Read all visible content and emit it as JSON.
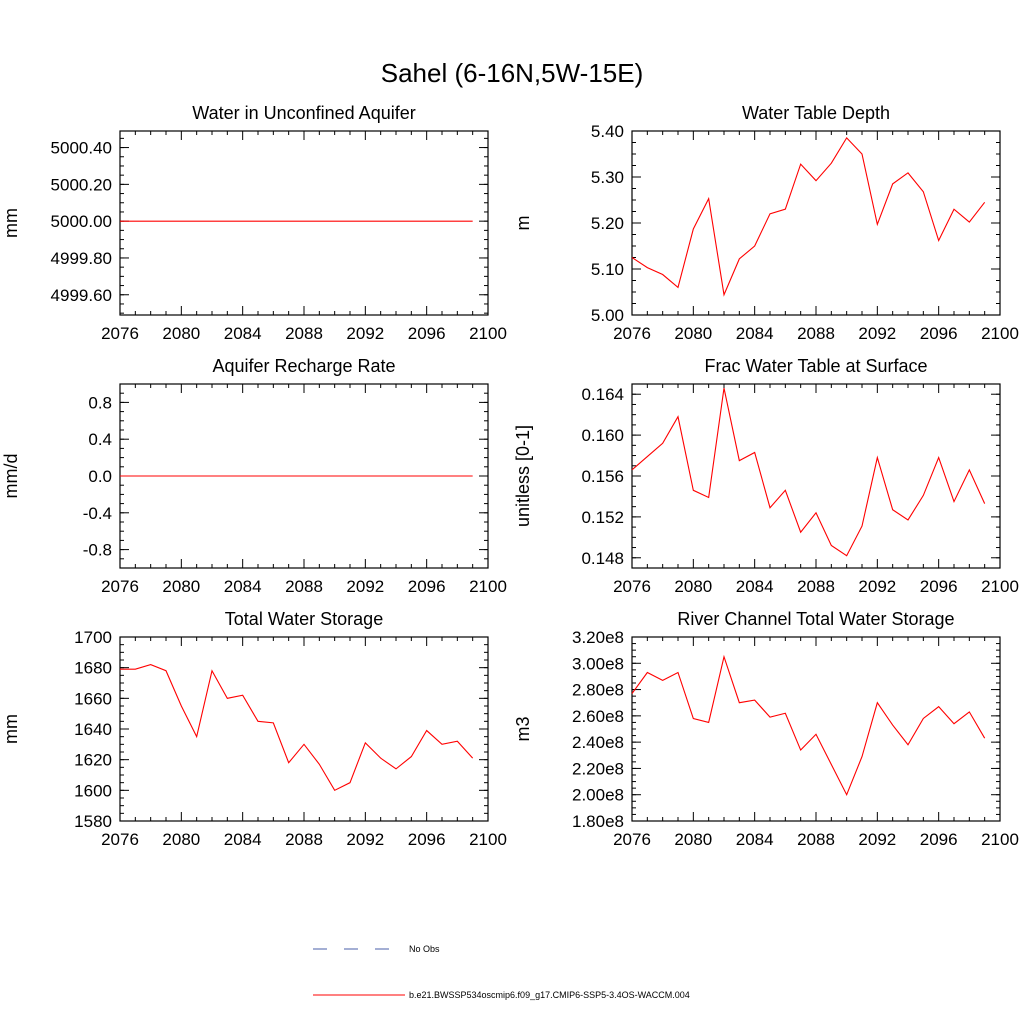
{
  "figure": {
    "title": "Sahel (6-16N,5W-15E)"
  },
  "chart_data": [
    {
      "type": "line",
      "title": "Water in Unconfined Aquifer",
      "ylabel": "mm",
      "xlim": [
        2076,
        2100
      ],
      "ylim": [
        4999.49,
        5000.49
      ],
      "xticks": [
        2076,
        2080,
        2084,
        2088,
        2092,
        2096,
        2100
      ],
      "xtick_labels": [
        "2076",
        "2080",
        "2084",
        "2088",
        "2092",
        "2096",
        "2100"
      ],
      "yticks": [
        4999.6,
        4999.8,
        5000.0,
        5000.2,
        5000.4
      ],
      "ytick_labels": [
        "4999.60",
        "4999.80",
        "5000.00",
        "5000.20",
        "5000.40"
      ],
      "x": [
        2076,
        2077,
        2078,
        2079,
        2080,
        2081,
        2082,
        2083,
        2084,
        2085,
        2086,
        2087,
        2088,
        2089,
        2090,
        2091,
        2092,
        2093,
        2094,
        2095,
        2096,
        2097,
        2098,
        2099
      ],
      "series": [
        {
          "name": "b.e21.BWSSP534oscmip6.f09_g17.CMIP6-SSP5-3.4OS-WACCM.004",
          "color": "#ff0000",
          "values": [
            5000,
            5000,
            5000,
            5000,
            5000,
            5000,
            5000,
            5000,
            5000,
            5000,
            5000,
            5000,
            5000,
            5000,
            5000,
            5000,
            5000,
            5000,
            5000,
            5000,
            5000,
            5000,
            5000,
            5000
          ]
        }
      ]
    },
    {
      "type": "line",
      "title": "Water Table Depth",
      "ylabel": "m",
      "xlim": [
        2076,
        2100
      ],
      "ylim": [
        5.0,
        5.4
      ],
      "xticks": [
        2076,
        2080,
        2084,
        2088,
        2092,
        2096,
        2100
      ],
      "xtick_labels": [
        "2076",
        "2080",
        "2084",
        "2088",
        "2092",
        "2096",
        "2100"
      ],
      "yticks": [
        5.0,
        5.1,
        5.2,
        5.3,
        5.4
      ],
      "ytick_labels": [
        "5.00",
        "5.10",
        "5.20",
        "5.30",
        "5.40"
      ],
      "x": [
        2076,
        2077,
        2078,
        2079,
        2080,
        2081,
        2082,
        2083,
        2084,
        2085,
        2086,
        2087,
        2088,
        2089,
        2090,
        2091,
        2092,
        2093,
        2094,
        2095,
        2096,
        2097,
        2098,
        2099
      ],
      "series": [
        {
          "name": "b.e21.BWSSP534oscmip6.f09_g17.CMIP6-SSP5-3.4OS-WACCM.004",
          "color": "#ff0000",
          "values": [
            5.125,
            5.103,
            5.088,
            5.06,
            5.187,
            5.253,
            5.044,
            5.122,
            5.15,
            5.22,
            5.23,
            5.328,
            5.292,
            5.33,
            5.385,
            5.35,
            5.197,
            5.285,
            5.309,
            5.268,
            5.162,
            5.23,
            5.202,
            5.245
          ]
        }
      ]
    },
    {
      "type": "line",
      "title": "Aquifer Recharge Rate",
      "ylabel": "mm/d",
      "xlim": [
        2076,
        2100
      ],
      "ylim": [
        -1.0,
        1.0
      ],
      "xticks": [
        2076,
        2080,
        2084,
        2088,
        2092,
        2096,
        2100
      ],
      "xtick_labels": [
        "2076",
        "2080",
        "2084",
        "2088",
        "2092",
        "2096",
        "2100"
      ],
      "yticks": [
        -0.8,
        -0.4,
        0.0,
        0.4,
        0.8
      ],
      "ytick_labels": [
        "-0.8",
        "-0.4",
        "0.0",
        "0.4",
        "0.8"
      ],
      "x": [
        2076,
        2077,
        2078,
        2079,
        2080,
        2081,
        2082,
        2083,
        2084,
        2085,
        2086,
        2087,
        2088,
        2089,
        2090,
        2091,
        2092,
        2093,
        2094,
        2095,
        2096,
        2097,
        2098,
        2099
      ],
      "series": [
        {
          "name": "b.e21.BWSSP534oscmip6.f09_g17.CMIP6-SSP5-3.4OS-WACCM.004",
          "color": "#ff0000",
          "values": [
            0,
            0,
            0,
            0,
            0,
            0,
            0,
            0,
            0,
            0,
            0,
            0,
            0,
            0,
            0,
            0,
            0,
            0,
            0,
            0,
            0,
            0,
            0,
            0
          ]
        }
      ]
    },
    {
      "type": "line",
      "title": "Frac Water Table at Surface",
      "ylabel": "unitless [0-1]",
      "xlim": [
        2076,
        2100
      ],
      "ylim": [
        0.147,
        0.165
      ],
      "xticks": [
        2076,
        2080,
        2084,
        2088,
        2092,
        2096,
        2100
      ],
      "xtick_labels": [
        "2076",
        "2080",
        "2084",
        "2088",
        "2092",
        "2096",
        "2100"
      ],
      "yticks": [
        0.148,
        0.152,
        0.156,
        0.16,
        0.164
      ],
      "ytick_labels": [
        "0.148",
        "0.152",
        "0.156",
        "0.160",
        "0.164"
      ],
      "x": [
        2076,
        2077,
        2078,
        2079,
        2080,
        2081,
        2082,
        2083,
        2084,
        2085,
        2086,
        2087,
        2088,
        2089,
        2090,
        2091,
        2092,
        2093,
        2094,
        2095,
        2096,
        2097,
        2098,
        2099
      ],
      "series": [
        {
          "name": "b.e21.BWSSP534oscmip6.f09_g17.CMIP6-SSP5-3.4OS-WACCM.004",
          "color": "#ff0000",
          "values": [
            0.1566,
            0.1579,
            0.1592,
            0.1618,
            0.1546,
            0.1539,
            0.1646,
            0.1575,
            0.1583,
            0.1529,
            0.1546,
            0.1505,
            0.1524,
            0.1492,
            0.1482,
            0.1511,
            0.1578,
            0.1527,
            0.1517,
            0.1541,
            0.1578,
            0.1535,
            0.1566,
            0.1533
          ]
        }
      ]
    },
    {
      "type": "line",
      "title": "Total Water Storage",
      "ylabel": "mm",
      "xlim": [
        2076,
        2100
      ],
      "ylim": [
        1580,
        1700
      ],
      "xticks": [
        2076,
        2080,
        2084,
        2088,
        2092,
        2096,
        2100
      ],
      "xtick_labels": [
        "2076",
        "2080",
        "2084",
        "2088",
        "2092",
        "2096",
        "2100"
      ],
      "yticks": [
        1580,
        1600,
        1620,
        1640,
        1660,
        1680,
        1700
      ],
      "ytick_labels": [
        "1580",
        "1600",
        "1620",
        "1640",
        "1660",
        "1680",
        "1700"
      ],
      "x": [
        2076,
        2077,
        2078,
        2079,
        2080,
        2081,
        2082,
        2083,
        2084,
        2085,
        2086,
        2087,
        2088,
        2089,
        2090,
        2091,
        2092,
        2093,
        2094,
        2095,
        2096,
        2097,
        2098,
        2099
      ],
      "series": [
        {
          "name": "b.e21.BWSSP534oscmip6.f09_g17.CMIP6-SSP5-3.4OS-WACCM.004",
          "color": "#ff0000",
          "values": [
            1679,
            1679,
            1682,
            1678,
            1655,
            1635,
            1678,
            1660,
            1662,
            1645,
            1644,
            1618,
            1630,
            1617,
            1600,
            1605,
            1631,
            1621,
            1614,
            1622,
            1639,
            1630,
            1632,
            1621
          ]
        }
      ]
    },
    {
      "type": "line",
      "title": "River Channel Total Water Storage",
      "ylabel": "m3",
      "xlim": [
        2076,
        2100
      ],
      "ylim": [
        180000000,
        320000000
      ],
      "xticks": [
        2076,
        2080,
        2084,
        2088,
        2092,
        2096,
        2100
      ],
      "xtick_labels": [
        "2076",
        "2080",
        "2084",
        "2088",
        "2092",
        "2096",
        "2100"
      ],
      "yticks": [
        180000000,
        200000000,
        220000000,
        240000000,
        260000000,
        280000000,
        300000000,
        320000000
      ],
      "ytick_labels": [
        "1.80e8",
        "2.00e8",
        "2.20e8",
        "2.40e8",
        "2.60e8",
        "2.80e8",
        "3.00e8",
        "3.20e8"
      ],
      "x": [
        2076,
        2077,
        2078,
        2079,
        2080,
        2081,
        2082,
        2083,
        2084,
        2085,
        2086,
        2087,
        2088,
        2089,
        2090,
        2091,
        2092,
        2093,
        2094,
        2095,
        2096,
        2097,
        2098,
        2099
      ],
      "series": [
        {
          "name": "b.e21.BWSSP534oscmip6.f09_g17.CMIP6-SSP5-3.4OS-WACCM.004",
          "color": "#ff0000",
          "values": [
            277000000,
            293000000,
            287000000,
            293000000,
            258000000,
            255000000,
            305000000,
            270000000,
            272000000,
            259000000,
            262000000,
            234000000,
            246000000,
            223000000,
            200000000,
            229000000,
            270000000,
            253000000,
            238000000,
            258000000,
            267000000,
            254000000,
            263000000,
            243000000
          ]
        }
      ]
    }
  ],
  "legend": [
    {
      "label": "No Obs",
      "color": "#4a5fa8",
      "style": "dashed"
    },
    {
      "label": "b.e21.BWSSP534oscmip6.f09_g17.CMIP6-SSP5-3.4OS-WACCM.004",
      "color": "#ff0000",
      "style": "solid"
    }
  ]
}
